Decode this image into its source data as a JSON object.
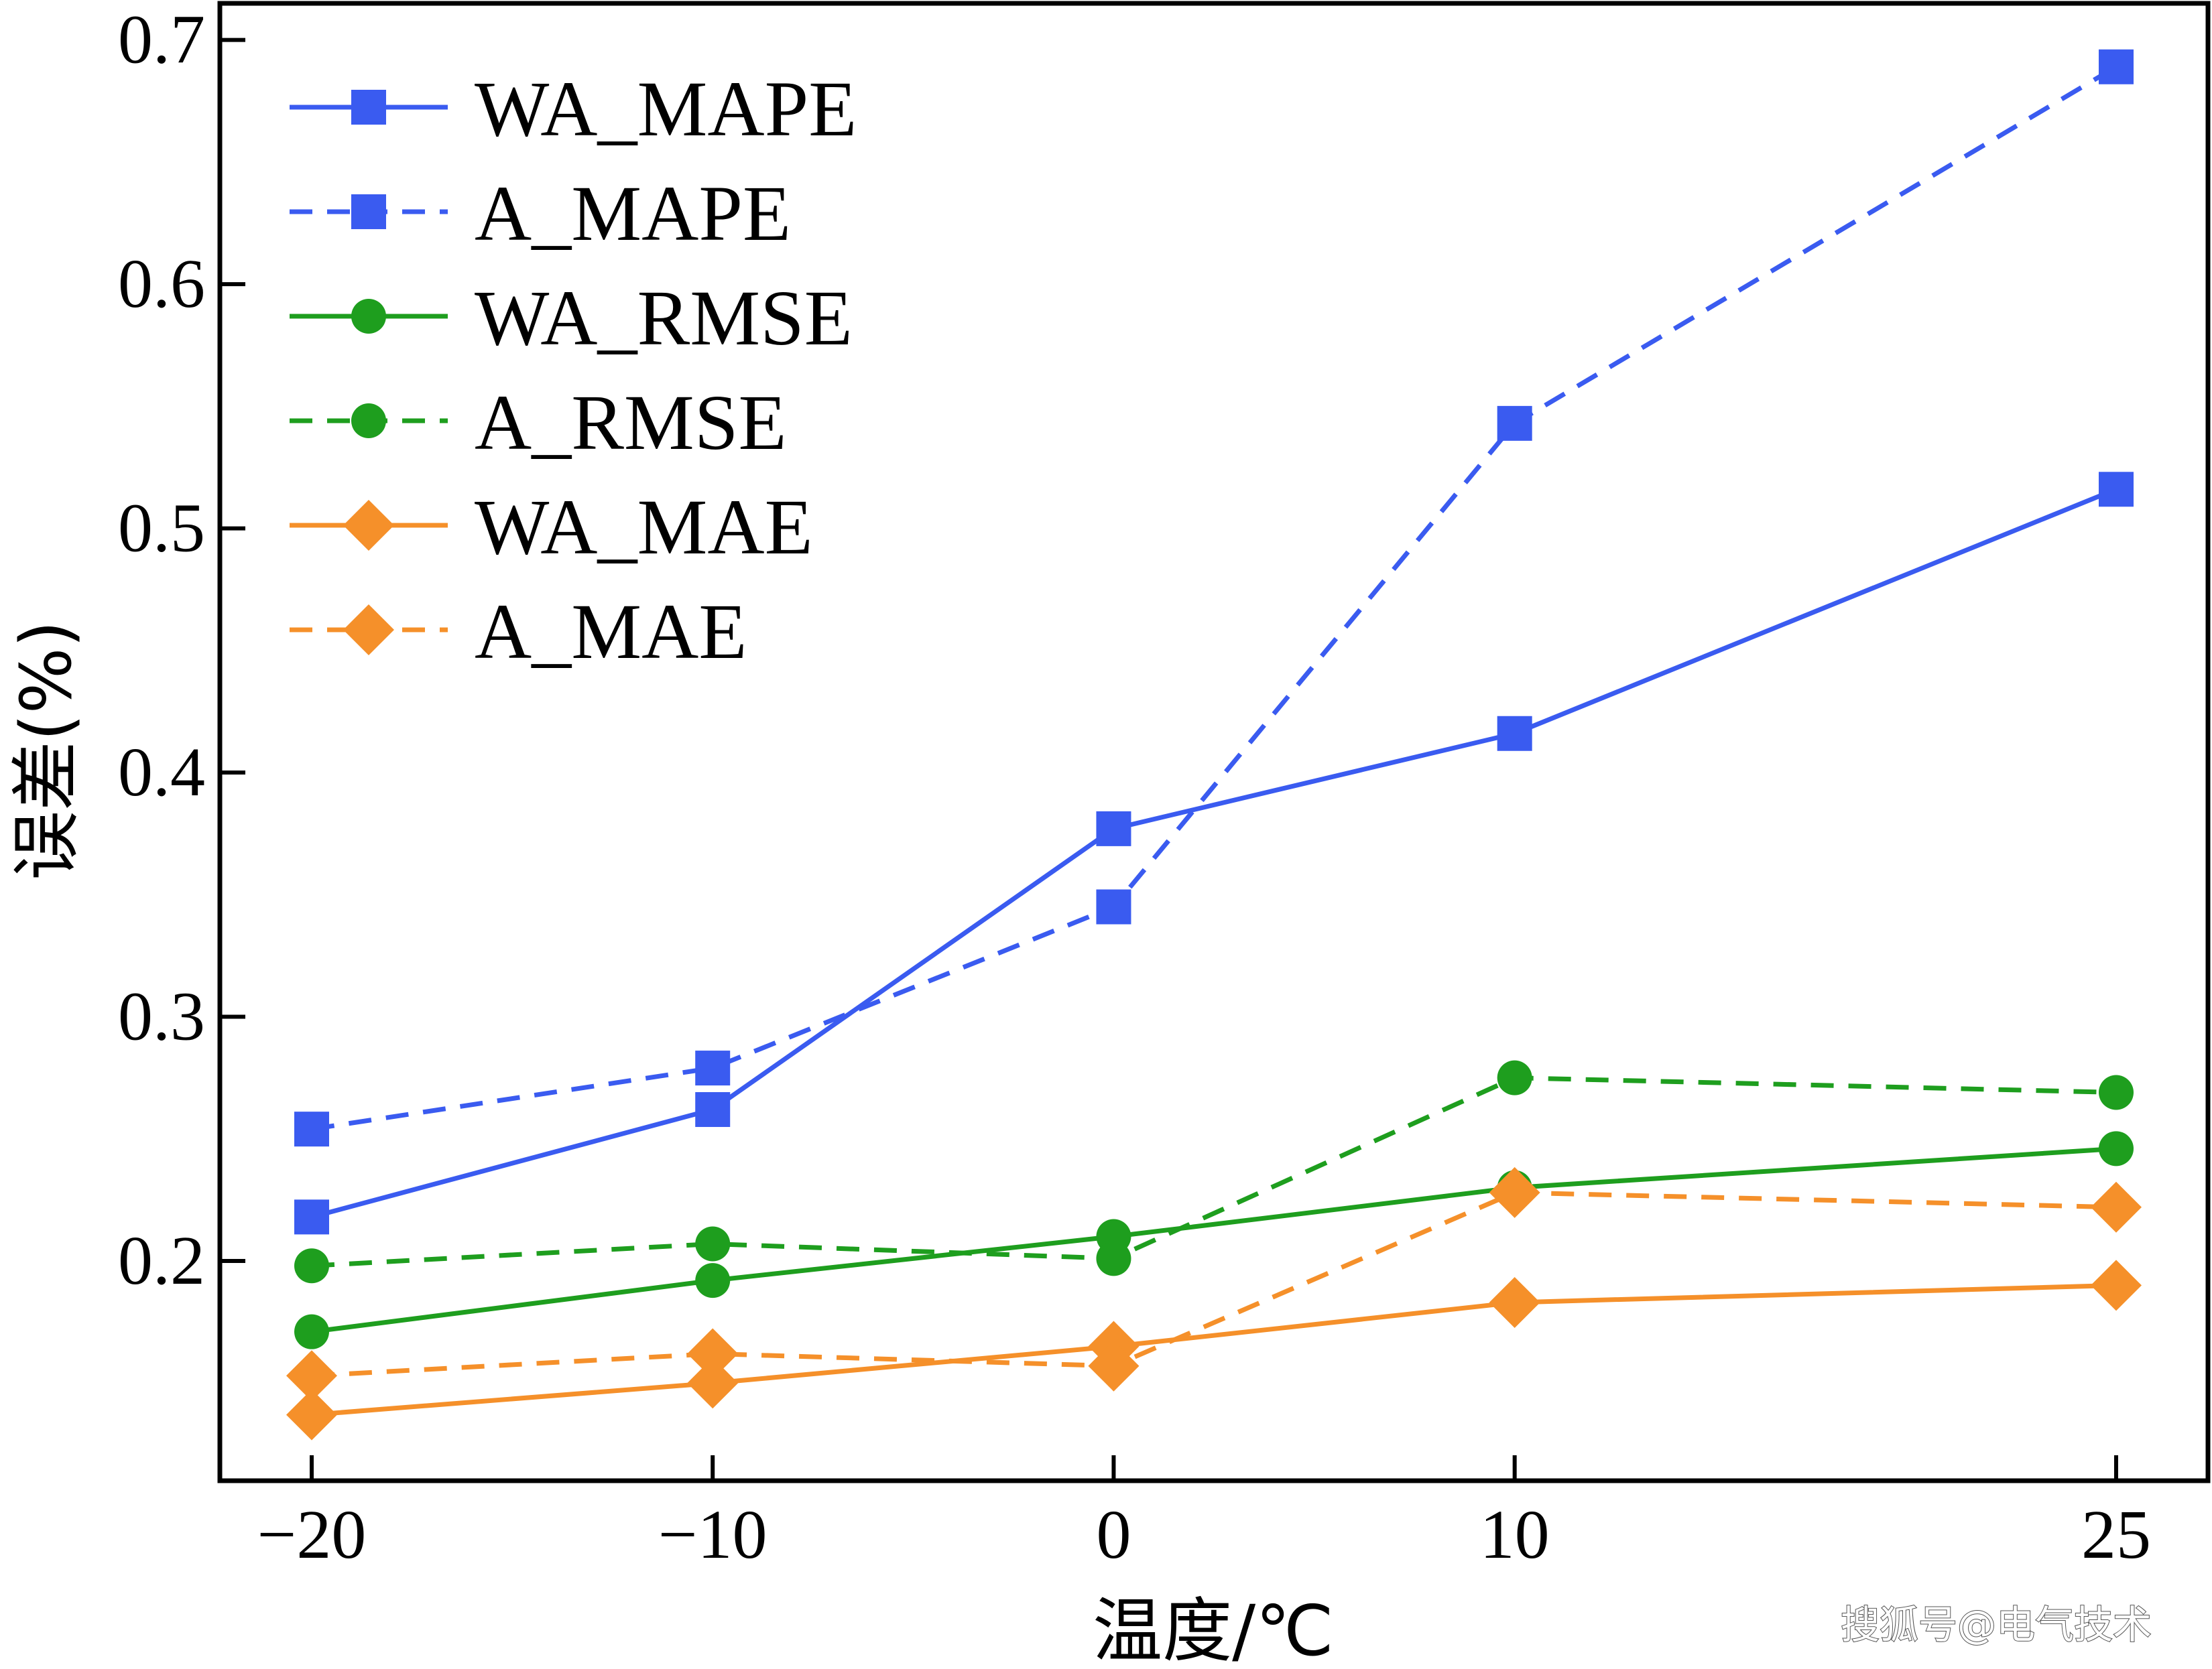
{
  "chart_data": {
    "type": "line",
    "title": "",
    "xlabel": "温度/℃",
    "ylabel": "误差(%)",
    "categories": [
      "−20",
      "−10",
      "0",
      "10",
      "25"
    ],
    "x": [
      -20,
      -10,
      0,
      10,
      25
    ],
    "ylim": [
      0.11,
      0.715
    ],
    "yticks": [
      0.2,
      0.3,
      0.4,
      0.5,
      0.6,
      0.7
    ],
    "ytick_labels": [
      "0.2",
      "0.3",
      "0.4",
      "0.5",
      "0.6",
      "0.7"
    ],
    "grid": false,
    "legend": "top-left",
    "series": [
      {
        "name": "WA_MAPE",
        "color": "#3a5bf0",
        "dash": "solid",
        "marker": "square",
        "values": [
          0.218,
          0.262,
          0.377,
          0.416,
          0.516
        ]
      },
      {
        "name": "A_MAPE",
        "color": "#3a5bf0",
        "dash": "dashed",
        "marker": "square",
        "values": [
          0.254,
          0.279,
          0.345,
          0.543,
          0.689
        ]
      },
      {
        "name": "WA_RMSE",
        "color": "#1e9e1e",
        "dash": "solid",
        "marker": "circle",
        "values": [
          0.171,
          0.192,
          0.21,
          0.23,
          0.246
        ]
      },
      {
        "name": "A_RMSE",
        "color": "#1e9e1e",
        "dash": "dashed",
        "marker": "circle",
        "values": [
          0.198,
          0.207,
          0.201,
          0.275,
          0.269
        ]
      },
      {
        "name": "WA_MAE",
        "color": "#f5902a",
        "dash": "solid",
        "marker": "diamond",
        "values": [
          0.137,
          0.15,
          0.165,
          0.183,
          0.19
        ]
      },
      {
        "name": "A_MAE",
        "color": "#f5902a",
        "dash": "dashed",
        "marker": "diamond",
        "values": [
          0.153,
          0.162,
          0.157,
          0.228,
          0.222
        ]
      }
    ]
  },
  "watermark": "搜狐号@电气技术"
}
